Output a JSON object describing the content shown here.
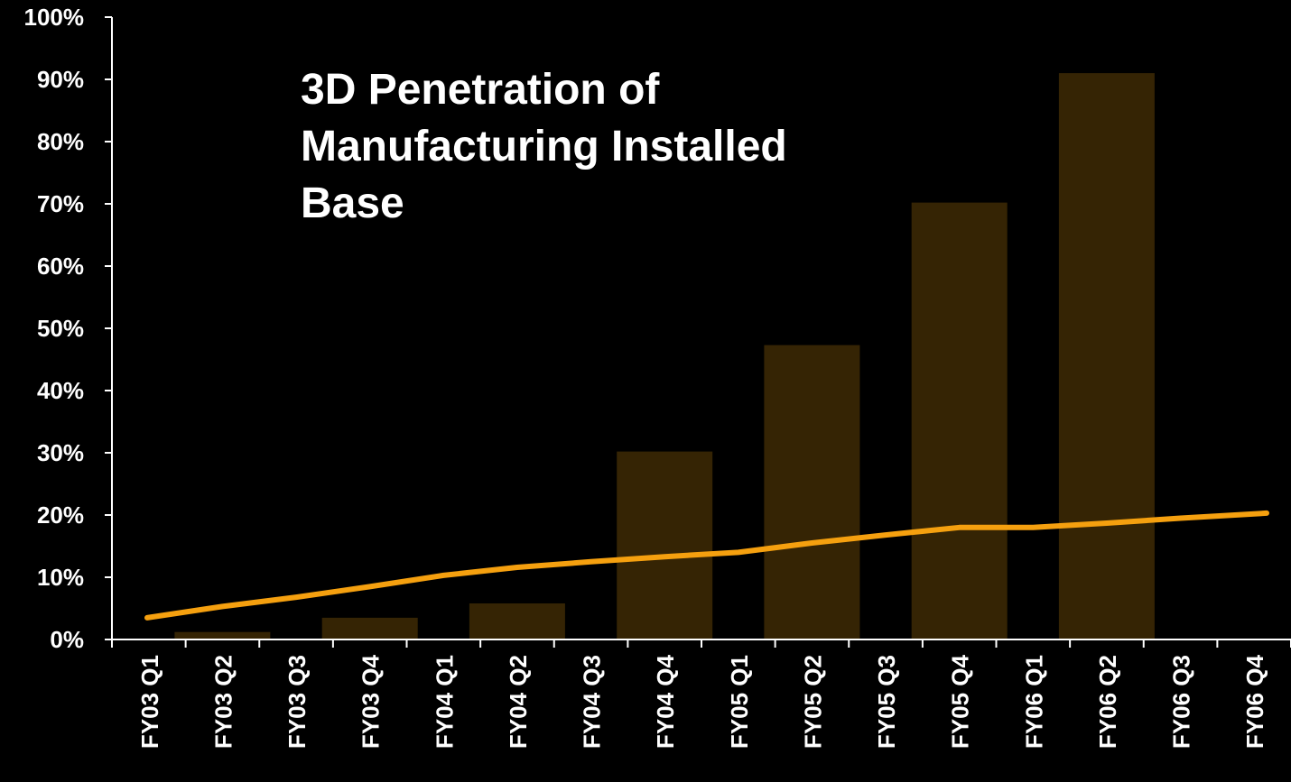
{
  "chart_data": {
    "type": "bar",
    "title": "3D Penetration of Manufacturing Installed Base",
    "xlabel": "",
    "ylabel": "",
    "ylim": [
      0,
      100
    ],
    "y_ticks": [
      "0%",
      "10%",
      "20%",
      "30%",
      "40%",
      "50%",
      "60%",
      "70%",
      "80%",
      "90%",
      "100%"
    ],
    "categories": [
      "FY03 Q1",
      "FY03 Q2",
      "FY03 Q3",
      "FY03 Q4",
      "FY04 Q1",
      "FY04 Q2",
      "FY04 Q3",
      "FY04 Q4",
      "FY05 Q1",
      "FY05 Q2",
      "FY05 Q3",
      "FY05 Q4",
      "FY06 Q1",
      "FY06 Q2",
      "FY06 Q3",
      "FY06 Q4"
    ],
    "grid": false,
    "legend": "none",
    "series": [
      {
        "type": "bar",
        "color": "#352404",
        "values": [
          null,
          1.2,
          null,
          3.5,
          null,
          5.8,
          null,
          30.2,
          null,
          47.3,
          null,
          70.2,
          null,
          91.0,
          null,
          null
        ]
      },
      {
        "type": "line",
        "color": "#f5a00f",
        "values": [
          3.5,
          5.3,
          6.8,
          8.5,
          10.3,
          11.6,
          12.5,
          13.3,
          14.0,
          15.5,
          16.8,
          18.0,
          18.0,
          18.7,
          19.5,
          20.3
        ]
      }
    ]
  }
}
